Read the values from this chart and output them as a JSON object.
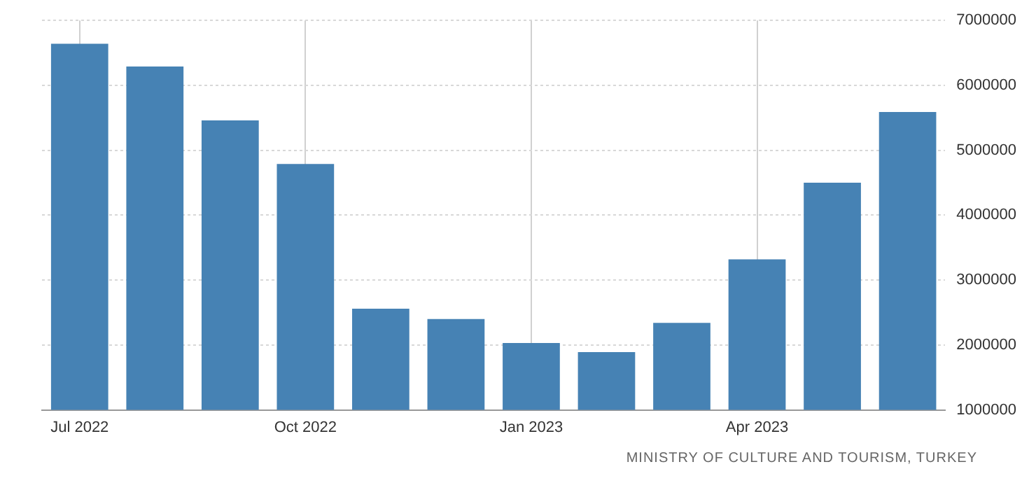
{
  "chart_data": {
    "type": "bar",
    "categories": [
      "Jul 2022",
      null,
      null,
      "Oct 2022",
      null,
      null,
      "Jan 2023",
      null,
      null,
      "Apr 2023",
      null,
      null
    ],
    "values": [
      6640000,
      6290000,
      5460000,
      4790000,
      2560000,
      2400000,
      2030000,
      1890000,
      2340000,
      3320000,
      4500000,
      5590000
    ],
    "color": "#4682b4",
    "ylim": [
      1000000,
      7000000
    ],
    "yticks": [
      1000000,
      2000000,
      3000000,
      4000000,
      5000000,
      6000000,
      7000000
    ],
    "grid": true,
    "legend": false,
    "annotations": [
      "MINISTRY OF CULTURE AND TOURISM, TURKEY"
    ]
  }
}
